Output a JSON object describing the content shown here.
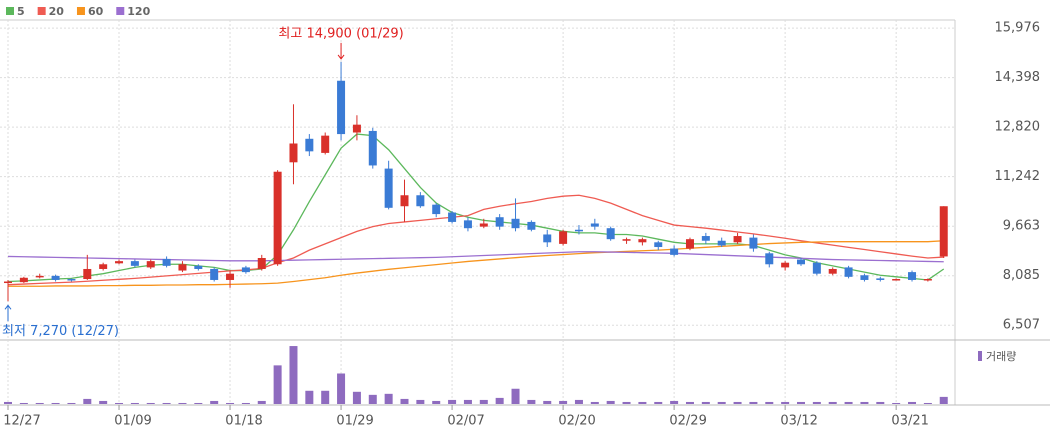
{
  "chart_data": {
    "type": "candlestick",
    "categories": [
      "12/27",
      null,
      null,
      null,
      null,
      null,
      null,
      "01/09",
      null,
      null,
      null,
      null,
      null,
      null,
      "01/18",
      null,
      null,
      null,
      null,
      null,
      null,
      "01/29",
      null,
      null,
      null,
      null,
      null,
      null,
      "02/07",
      null,
      null,
      null,
      null,
      null,
      null,
      "02/20",
      null,
      null,
      null,
      null,
      null,
      null,
      "02/29",
      null,
      null,
      null,
      null,
      null,
      null,
      "03/12",
      null,
      null,
      null,
      null,
      null,
      null,
      "03/21",
      null,
      null,
      null
    ],
    "open": [
      7880,
      7880,
      8050,
      8080,
      7980,
      7980,
      8300,
      8480,
      8550,
      8350,
      8620,
      8250,
      8400,
      8300,
      7950,
      8350,
      8300,
      8450,
      11700,
      12450,
      12000,
      14300,
      12650,
      12700,
      11500,
      10300,
      10650,
      10350,
      10100,
      9850,
      9650,
      9950,
      9900,
      9800,
      9400,
      9100,
      9550,
      9750,
      9600,
      9200,
      9150,
      9150,
      8950,
      8950,
      9350,
      9200,
      9150,
      9300,
      8800,
      8350,
      8600,
      8500,
      8150,
      8350,
      8100,
      8000,
      7950,
      8200,
      7950,
      8700
    ],
    "high": [
      7950,
      8050,
      8150,
      8120,
      8000,
      8750,
      8500,
      8600,
      8600,
      8600,
      8700,
      8550,
      8450,
      8350,
      8250,
      8400,
      8750,
      11450,
      13550,
      12600,
      12650,
      14900,
      13200,
      12800,
      11750,
      11150,
      10750,
      10400,
      10150,
      9950,
      9900,
      10050,
      10550,
      9850,
      9550,
      9550,
      9700,
      9900,
      9650,
      9300,
      9300,
      9200,
      9050,
      9300,
      9450,
      9300,
      9450,
      9400,
      8850,
      8550,
      8650,
      8550,
      8350,
      8400,
      8150,
      8050,
      8000,
      8250,
      8000,
      10300
    ],
    "low": [
      7270,
      7850,
      8000,
      7900,
      7900,
      7950,
      8250,
      8450,
      8350,
      8300,
      8350,
      8200,
      8250,
      7900,
      7700,
      8150,
      8250,
      8400,
      11000,
      11900,
      11950,
      12400,
      12400,
      11500,
      10200,
      9800,
      10250,
      9950,
      9750,
      9500,
      9600,
      9550,
      9500,
      9500,
      9000,
      9050,
      9400,
      9550,
      9200,
      9100,
      9050,
      8900,
      8700,
      8900,
      9100,
      9000,
      9100,
      8850,
      8350,
      8250,
      8400,
      8100,
      8100,
      8000,
      7900,
      7900,
      7930,
      7900,
      7900,
      8650
    ],
    "close": [
      7900,
      8020,
      8080,
      7950,
      7950,
      8300,
      8450,
      8550,
      8400,
      8550,
      8400,
      8450,
      8300,
      7950,
      8150,
      8200,
      8650,
      11400,
      12300,
      12050,
      12550,
      12600,
      12900,
      11600,
      10250,
      10650,
      10300,
      10050,
      9800,
      9600,
      9750,
      9650,
      9600,
      9550,
      9150,
      9500,
      9500,
      9650,
      9250,
      9250,
      9250,
      9000,
      8750,
      9250,
      9200,
      9050,
      9350,
      8950,
      8450,
      8500,
      8450,
      8150,
      8300,
      8050,
      7950,
      7950,
      7980,
      7950,
      7980,
      10300
    ],
    "up_color": "#d9302a",
    "down_color": "#3a7bd5",
    "ylim": [
      6100,
      16300
    ],
    "yticks": [
      {
        "value": 6507,
        "label": "6,507"
      },
      {
        "value": 8085,
        "label": "8,085"
      },
      {
        "value": 9663,
        "label": "9,663"
      },
      {
        "value": 11242,
        "label": "11,242"
      },
      {
        "value": 12820,
        "label": "12,820"
      },
      {
        "value": 14398,
        "label": "14,398"
      },
      {
        "value": 15976,
        "label": "15,976"
      }
    ],
    "grid": true,
    "max_label": "최고 14,900 (01/29)",
    "min_label": "최저 7,270 (12/27)",
    "series": [
      {
        "name": "5",
        "color": "#5cb85c",
        "values": [
          7900,
          7920,
          7950,
          7980,
          8000,
          8080,
          8150,
          8250,
          8350,
          8420,
          8450,
          8450,
          8400,
          8350,
          8250,
          8250,
          8300,
          8750,
          9550,
          10450,
          11300,
          12150,
          12600,
          12550,
          12100,
          11500,
          10900,
          10400,
          10100,
          9950,
          9850,
          9800,
          9750,
          9700,
          9600,
          9500,
          9450,
          9450,
          9400,
          9400,
          9350,
          9250,
          9150,
          9100,
          9100,
          9100,
          9100,
          9050,
          8900,
          8750,
          8650,
          8500,
          8400,
          8300,
          8200,
          8100,
          8050,
          8000,
          7950,
          8300
        ]
      },
      {
        "name": "20",
        "color": "#ef5b52",
        "values": [
          7800,
          7820,
          7840,
          7860,
          7880,
          7910,
          7940,
          7970,
          8000,
          8040,
          8080,
          8120,
          8160,
          8200,
          8240,
          8270,
          8320,
          8500,
          8650,
          8900,
          9100,
          9300,
          9500,
          9650,
          9750,
          9800,
          9850,
          9900,
          9950,
          10000,
          10200,
          10300,
          10380,
          10450,
          10550,
          10620,
          10650,
          10550,
          10400,
          10200,
          10000,
          9850,
          9700,
          9650,
          9600,
          9540,
          9480,
          9420,
          9350,
          9280,
          9200,
          9130,
          9060,
          8990,
          8920,
          8850,
          8780,
          8710,
          8650,
          8680
        ]
      },
      {
        "name": "60",
        "color": "#f7941d",
        "values": [
          7750,
          7750,
          7750,
          7760,
          7760,
          7760,
          7770,
          7770,
          7780,
          7780,
          7790,
          7790,
          7800,
          7800,
          7810,
          7820,
          7830,
          7850,
          7900,
          7960,
          8020,
          8100,
          8170,
          8230,
          8290,
          8340,
          8390,
          8440,
          8490,
          8540,
          8580,
          8620,
          8660,
          8700,
          8730,
          8760,
          8790,
          8820,
          8840,
          8860,
          8880,
          8900,
          8930,
          8960,
          8990,
          9020,
          9050,
          9080,
          9110,
          9130,
          9150,
          9160,
          9170,
          9170,
          9170,
          9170,
          9170,
          9170,
          9170,
          9200
        ]
      },
      {
        "name": "120",
        "color": "#9b6fd0",
        "values": [
          8700,
          8690,
          8680,
          8670,
          8660,
          8650,
          8640,
          8630,
          8620,
          8610,
          8600,
          8590,
          8580,
          8570,
          8560,
          8560,
          8560,
          8570,
          8580,
          8590,
          8600,
          8610,
          8620,
          8630,
          8640,
          8650,
          8660,
          8670,
          8690,
          8710,
          8730,
          8750,
          8770,
          8790,
          8810,
          8830,
          8850,
          8850,
          8840,
          8830,
          8820,
          8810,
          8800,
          8780,
          8760,
          8740,
          8720,
          8700,
          8680,
          8660,
          8640,
          8620,
          8600,
          8590,
          8580,
          8570,
          8560,
          8550,
          8540,
          8530
        ]
      }
    ],
    "volume": {
      "label": "거래량",
      "color": "#8e6bbf",
      "ylim": [
        0,
        60
      ],
      "values": [
        2,
        1,
        1,
        1,
        1,
        5,
        3,
        1,
        1,
        1,
        1,
        1,
        1,
        3,
        1,
        1,
        3,
        38,
        57,
        13,
        13,
        30,
        12,
        9,
        10,
        5,
        4,
        3,
        4,
        4,
        4,
        6,
        15,
        4,
        3,
        3,
        4,
        2,
        3,
        2,
        2,
        2,
        3,
        2,
        2,
        2,
        2,
        2,
        2,
        2,
        2,
        2,
        2,
        2,
        2,
        2,
        1,
        2,
        1,
        7
      ]
    }
  }
}
